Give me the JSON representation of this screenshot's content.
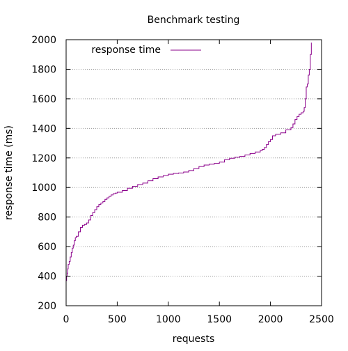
{
  "chart_data": {
    "type": "line",
    "title": "Benchmark testing",
    "xlabel": "requests",
    "ylabel": "response time (ms)",
    "xlim": [
      0,
      2500
    ],
    "ylim": [
      200,
      2000
    ],
    "x_ticks": [
      0,
      500,
      1000,
      1500,
      2000,
      2500
    ],
    "y_ticks": [
      200,
      400,
      600,
      800,
      1000,
      1200,
      1400,
      1600,
      1800,
      2000
    ],
    "grid": "horizontal-dotted",
    "legend_position": "top-left",
    "series": [
      {
        "name": "response time",
        "color": "#8b008b",
        "x": [
          0,
          5,
          10,
          15,
          20,
          30,
          40,
          50,
          60,
          70,
          80,
          90,
          100,
          120,
          140,
          160,
          180,
          200,
          220,
          240,
          260,
          280,
          300,
          320,
          340,
          360,
          380,
          400,
          420,
          440,
          460,
          480,
          500,
          550,
          600,
          650,
          700,
          750,
          800,
          850,
          900,
          950,
          1000,
          1050,
          1100,
          1150,
          1200,
          1250,
          1300,
          1350,
          1400,
          1450,
          1500,
          1550,
          1600,
          1650,
          1700,
          1750,
          1800,
          1850,
          1900,
          1920,
          1940,
          1960,
          1980,
          2000,
          2020,
          2050,
          2100,
          2150,
          2200,
          2220,
          2240,
          2260,
          2280,
          2300,
          2320,
          2330,
          2340,
          2350,
          2360,
          2370,
          2380,
          2390,
          2400
        ],
        "y": [
          370,
          400,
          420,
          450,
          480,
          500,
          530,
          560,
          590,
          610,
          640,
          660,
          670,
          700,
          730,
          745,
          750,
          760,
          780,
          810,
          830,
          850,
          870,
          885,
          895,
          905,
          920,
          930,
          940,
          950,
          958,
          962,
          968,
          980,
          995,
          1008,
          1020,
          1030,
          1045,
          1060,
          1072,
          1080,
          1090,
          1095,
          1098,
          1105,
          1115,
          1128,
          1142,
          1152,
          1158,
          1163,
          1172,
          1188,
          1198,
          1205,
          1210,
          1220,
          1230,
          1240,
          1250,
          1258,
          1270,
          1290,
          1310,
          1325,
          1350,
          1360,
          1370,
          1390,
          1405,
          1430,
          1460,
          1480,
          1495,
          1505,
          1515,
          1540,
          1600,
          1680,
          1700,
          1760,
          1800,
          1900,
          1980
        ]
      }
    ]
  }
}
